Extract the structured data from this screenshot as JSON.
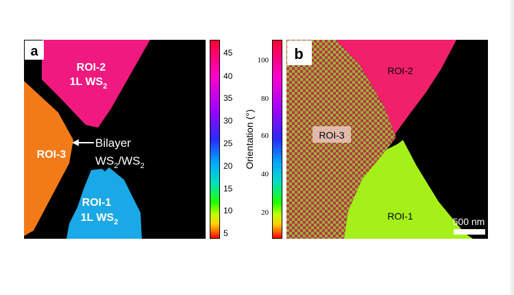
{
  "panel_a": {
    "letter": "a",
    "regions": [
      {
        "label": "ROI-2",
        "sublabel": "1L WS",
        "sub": "2"
      },
      {
        "label": "ROI-3"
      },
      {
        "label": "ROI-1",
        "sublabel": "1L WS",
        "sub": "2"
      }
    ],
    "annotation": {
      "line1": "Bilayer",
      "line2_a": "WS",
      "line2_sub_a": "2",
      "line2_sep": "/WS",
      "line2_sub_b": "2"
    },
    "colors": {
      "roi2": "#f0197f",
      "roi3": "#f37b17",
      "roi1": "#1aa8e6",
      "background": "#000000"
    }
  },
  "colorbar_a": {
    "ticks": [
      "45",
      "40",
      "35",
      "30",
      "25",
      "20",
      "15",
      "10",
      "5"
    ]
  },
  "colorbar_b": {
    "title": "Orientation (°)",
    "ticks": [
      "100",
      "80",
      "60",
      "40",
      "20"
    ]
  },
  "panel_b": {
    "letter": "b",
    "regions": [
      {
        "label": "ROI-2"
      },
      {
        "label": "ROI-3"
      },
      {
        "label": "ROI-1"
      }
    ],
    "scale_bar": {
      "label": "500 nm"
    },
    "colors": {
      "roi2": "#f0206a",
      "roi1": "#a6f01a",
      "check_a": "#c4304e",
      "check_b": "#8fb830",
      "background": "#000000"
    }
  }
}
